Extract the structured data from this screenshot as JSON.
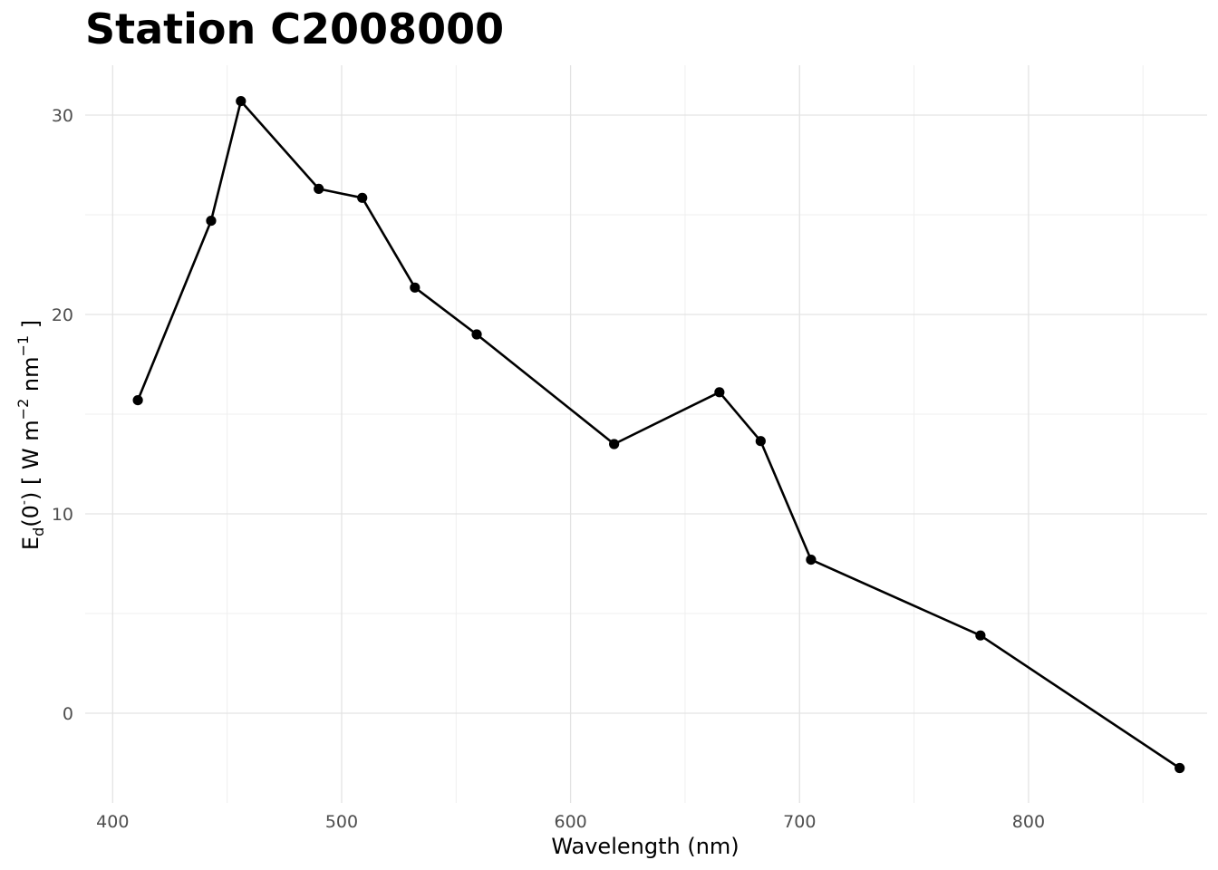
{
  "chart_data": {
    "type": "line",
    "title": "Station C2008000",
    "xlabel": "Wavelength (nm)",
    "ylabel": {
      "base": "E",
      "sub": "d",
      "open": "(0",
      "sup_minus": "-",
      "close": ") [ W m",
      "exp1": "−2",
      "mid": " nm",
      "exp2": "−1",
      "end": " ]"
    },
    "xlim": [
      388,
      878
    ],
    "ylim": [
      -4.5,
      32.5
    ],
    "x_major_ticks": [
      400,
      500,
      600,
      700,
      800
    ],
    "x_minor_ticks": [
      450,
      550,
      650,
      750,
      850
    ],
    "y_major_ticks": [
      0,
      10,
      20,
      30
    ],
    "y_minor_ticks": [
      5,
      15,
      25
    ],
    "x_tick_labels": [
      "400",
      "500",
      "600",
      "700",
      "800"
    ],
    "y_tick_labels": [
      "0",
      "10",
      "20",
      "30"
    ],
    "grid": true,
    "line_color": "#000000",
    "marker_color": "#000000",
    "series": [
      {
        "x": [
          411,
          443,
          456,
          490,
          509,
          532,
          559,
          619,
          665,
          683,
          705,
          779,
          866
        ],
        "y": [
          15.7,
          24.7,
          30.7,
          26.3,
          25.85,
          21.35,
          19.0,
          13.5,
          16.1,
          13.65,
          7.7,
          3.9,
          -2.75
        ]
      }
    ]
  }
}
